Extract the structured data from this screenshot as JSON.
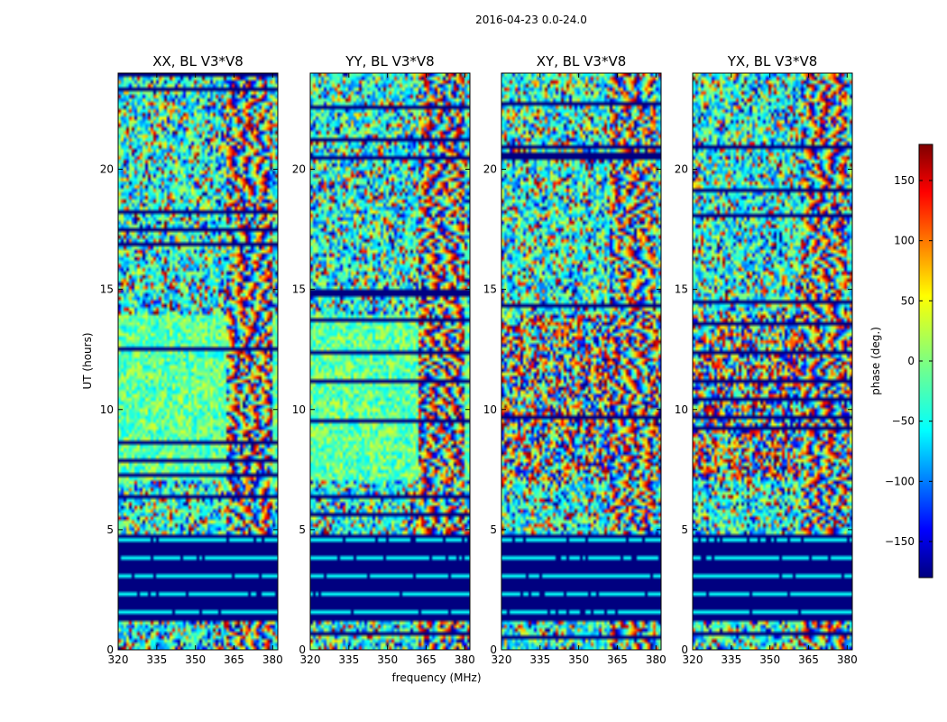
{
  "chart_data": {
    "type": "heatmap",
    "title": "2016-04-23 0.0-24.0",
    "xlabel": "frequency (MHz)",
    "ylabel": "UT (hours)",
    "xlim": [
      320,
      382
    ],
    "ylim": [
      0,
      24
    ],
    "xticks": [
      "320",
      "335",
      "350",
      "365",
      "380"
    ],
    "yticks": [
      "0",
      "5",
      "10",
      "15",
      "20"
    ],
    "panels": [
      {
        "title": "XX, BL V3*V8",
        "polarization": "XX"
      },
      {
        "title": "YY, BL V3*V8",
        "polarization": "YY"
      },
      {
        "title": "XY, BL V3*V8",
        "polarization": "XY"
      },
      {
        "title": "YX, BL V3*V8",
        "polarization": "YX"
      }
    ],
    "colorbar": {
      "label": "phase (deg.)",
      "range": [
        -180,
        180
      ],
      "ticks": [
        "150",
        "100",
        "50",
        "0",
        "−50",
        "−100",
        "−150"
      ],
      "colormap": "jet"
    },
    "features": {
      "blank_phase_band_hours": [
        1.2,
        4.8
      ],
      "fringe_onset_freq_mhz": 363
    }
  }
}
